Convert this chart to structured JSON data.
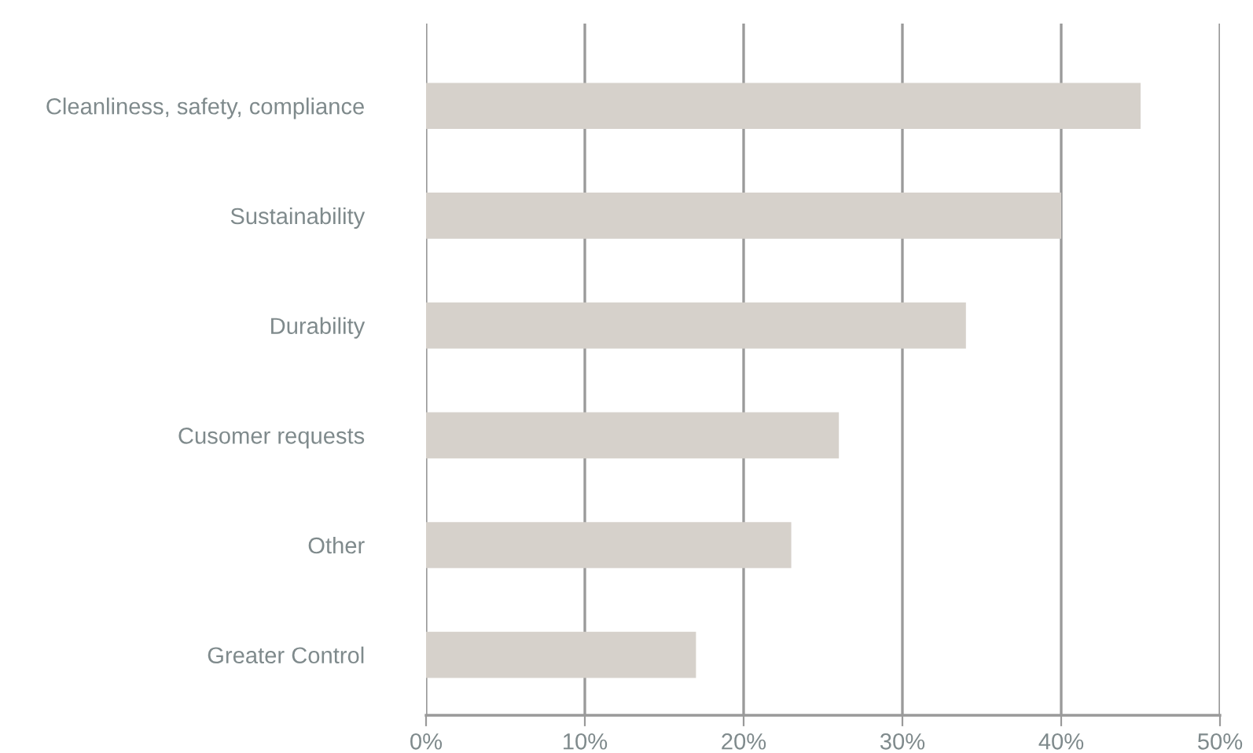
{
  "chart_data": {
    "type": "bar",
    "orientation": "horizontal",
    "categories": [
      "Cleanliness, safety, compliance",
      "Sustainability",
      "Durability",
      "Cusomer requests",
      "Other",
      "Greater Control"
    ],
    "values": [
      45,
      40,
      34,
      26,
      23,
      17
    ],
    "color": "#d6d1cb",
    "xlim": [
      0,
      50
    ],
    "xticks": [
      {
        "value": 0,
        "label": "0%"
      },
      {
        "value": 10,
        "label": "10%"
      },
      {
        "value": 20,
        "label": "20%"
      },
      {
        "value": 30,
        "label": "30%"
      },
      {
        "value": 40,
        "label": "40%"
      },
      {
        "value": 50,
        "label": "50%"
      }
    ],
    "grid": "x"
  }
}
